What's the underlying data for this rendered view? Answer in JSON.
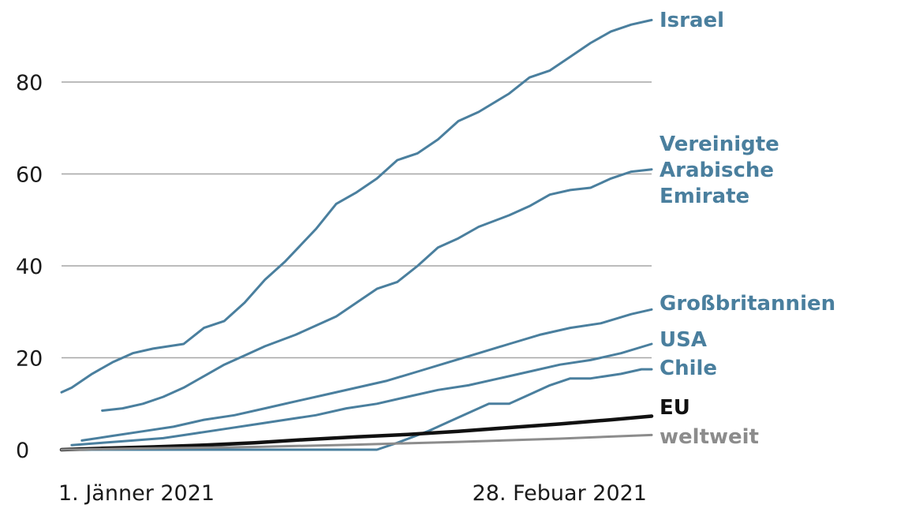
{
  "chart_data": {
    "type": "line",
    "title": "",
    "xlabel": "",
    "ylabel": "",
    "x_range": [
      "2021-01-01",
      "2021-02-28"
    ],
    "x_ticks": [
      "1. Jänner 2021",
      "28. Febuar 2021"
    ],
    "y_range": [
      0,
      95
    ],
    "y_ticks": [
      0,
      20,
      40,
      60,
      80
    ],
    "grid": "horizontal",
    "colors": {
      "blue": "#4a7f9e",
      "black": "#111111",
      "gray": "#8c8c8c"
    },
    "series": [
      {
        "name": "Israel",
        "label_lines": [
          "Israel"
        ],
        "color": "#4a7f9e",
        "x": [
          "2021-01-01",
          "2021-01-02",
          "2021-01-04",
          "2021-01-06",
          "2021-01-08",
          "2021-01-10",
          "2021-01-13",
          "2021-01-15",
          "2021-01-17",
          "2021-01-19",
          "2021-01-21",
          "2021-01-23",
          "2021-01-26",
          "2021-01-28",
          "2021-01-30",
          "2021-02-01",
          "2021-02-03",
          "2021-02-05",
          "2021-02-07",
          "2021-02-09",
          "2021-02-11",
          "2021-02-14",
          "2021-02-16",
          "2021-02-18",
          "2021-02-20",
          "2021-02-22",
          "2021-02-24",
          "2021-02-26",
          "2021-02-28"
        ],
        "y": [
          12.5,
          13.5,
          16.5,
          19,
          21,
          22,
          23,
          26.5,
          28,
          32,
          37,
          41,
          48,
          53.5,
          56,
          59,
          63,
          64.5,
          67.5,
          71.5,
          73.5,
          77.5,
          81,
          82.5,
          85.5,
          88.5,
          91,
          92.5,
          93.5
        ]
      },
      {
        "name": "Vereinigte Arabische Emirate",
        "label_lines": [
          "Vereinigte",
          "Arabische",
          "Emirate"
        ],
        "color": "#4a7f9e",
        "x": [
          "2021-01-05",
          "2021-01-07",
          "2021-01-09",
          "2021-01-11",
          "2021-01-13",
          "2021-01-15",
          "2021-01-17",
          "2021-01-19",
          "2021-01-21",
          "2021-01-24",
          "2021-01-26",
          "2021-01-28",
          "2021-01-30",
          "2021-02-01",
          "2021-02-03",
          "2021-02-05",
          "2021-02-07",
          "2021-02-09",
          "2021-02-11",
          "2021-02-14",
          "2021-02-16",
          "2021-02-18",
          "2021-02-20",
          "2021-02-22",
          "2021-02-24",
          "2021-02-26",
          "2021-02-28"
        ],
        "y": [
          8.5,
          9,
          10,
          11.5,
          13.5,
          16,
          18.5,
          20.5,
          22.5,
          25,
          27,
          29,
          32,
          35,
          36.5,
          40,
          44,
          46,
          48.5,
          51,
          53,
          55.5,
          56.5,
          57,
          59,
          60.5,
          61
        ]
      },
      {
        "name": "Großbritannien",
        "label_lines": [
          "Großbritannien"
        ],
        "color": "#4a7f9e",
        "x": [
          "2021-01-03",
          "2021-01-06",
          "2021-01-09",
          "2021-01-12",
          "2021-01-15",
          "2021-01-18",
          "2021-01-21",
          "2021-01-24",
          "2021-01-27",
          "2021-01-30",
          "2021-02-02",
          "2021-02-05",
          "2021-02-08",
          "2021-02-11",
          "2021-02-14",
          "2021-02-17",
          "2021-02-20",
          "2021-02-23",
          "2021-02-26",
          "2021-02-28"
        ],
        "y": [
          2,
          3,
          4,
          5,
          6.5,
          7.5,
          9,
          10.5,
          12,
          13.5,
          15,
          17,
          19,
          21,
          23,
          25,
          26.5,
          27.5,
          29.5,
          30.5
        ]
      },
      {
        "name": "USA",
        "label_lines": [
          "USA"
        ],
        "color": "#4a7f9e",
        "x": [
          "2021-01-02",
          "2021-01-05",
          "2021-01-08",
          "2021-01-11",
          "2021-01-14",
          "2021-01-17",
          "2021-01-20",
          "2021-01-23",
          "2021-01-26",
          "2021-01-29",
          "2021-02-01",
          "2021-02-04",
          "2021-02-07",
          "2021-02-10",
          "2021-02-13",
          "2021-02-16",
          "2021-02-19",
          "2021-02-22",
          "2021-02-25",
          "2021-02-28"
        ],
        "y": [
          1,
          1.5,
          2,
          2.5,
          3.5,
          4.5,
          5.5,
          6.5,
          7.5,
          9,
          10,
          11.5,
          13,
          14,
          15.5,
          17,
          18.5,
          19.5,
          21,
          23
        ]
      },
      {
        "name": "Chile",
        "label_lines": [
          "Chile"
        ],
        "color": "#4a7f9e",
        "x": [
          "2021-01-01",
          "2021-02-01",
          "2021-02-03",
          "2021-02-06",
          "2021-02-08",
          "2021-02-10",
          "2021-02-12",
          "2021-02-14",
          "2021-02-16",
          "2021-02-18",
          "2021-02-20",
          "2021-02-22",
          "2021-02-25",
          "2021-02-27",
          "2021-02-28"
        ],
        "y": [
          0,
          0,
          1.5,
          4,
          6,
          8,
          10,
          10,
          12,
          14,
          15.5,
          15.5,
          16.5,
          17.5,
          17.5
        ]
      },
      {
        "name": "EU",
        "label_lines": [
          "EU"
        ],
        "color": "#111111",
        "x": [
          "2021-01-01",
          "2021-01-05",
          "2021-01-10",
          "2021-01-15",
          "2021-01-20",
          "2021-01-25",
          "2021-01-30",
          "2021-02-04",
          "2021-02-09",
          "2021-02-14",
          "2021-02-19",
          "2021-02-24",
          "2021-02-28"
        ],
        "y": [
          0,
          0.3,
          0.6,
          1,
          1.5,
          2.2,
          2.8,
          3.3,
          4,
          4.8,
          5.6,
          6.5,
          7.3
        ]
      },
      {
        "name": "weltweit",
        "label_lines": [
          "weltweit"
        ],
        "color": "#8c8c8c",
        "x": [
          "2021-01-01",
          "2021-01-10",
          "2021-01-20",
          "2021-01-30",
          "2021-02-09",
          "2021-02-19",
          "2021-02-28"
        ],
        "y": [
          0,
          0.3,
          0.6,
          1.1,
          1.7,
          2.4,
          3.2
        ]
      }
    ]
  }
}
